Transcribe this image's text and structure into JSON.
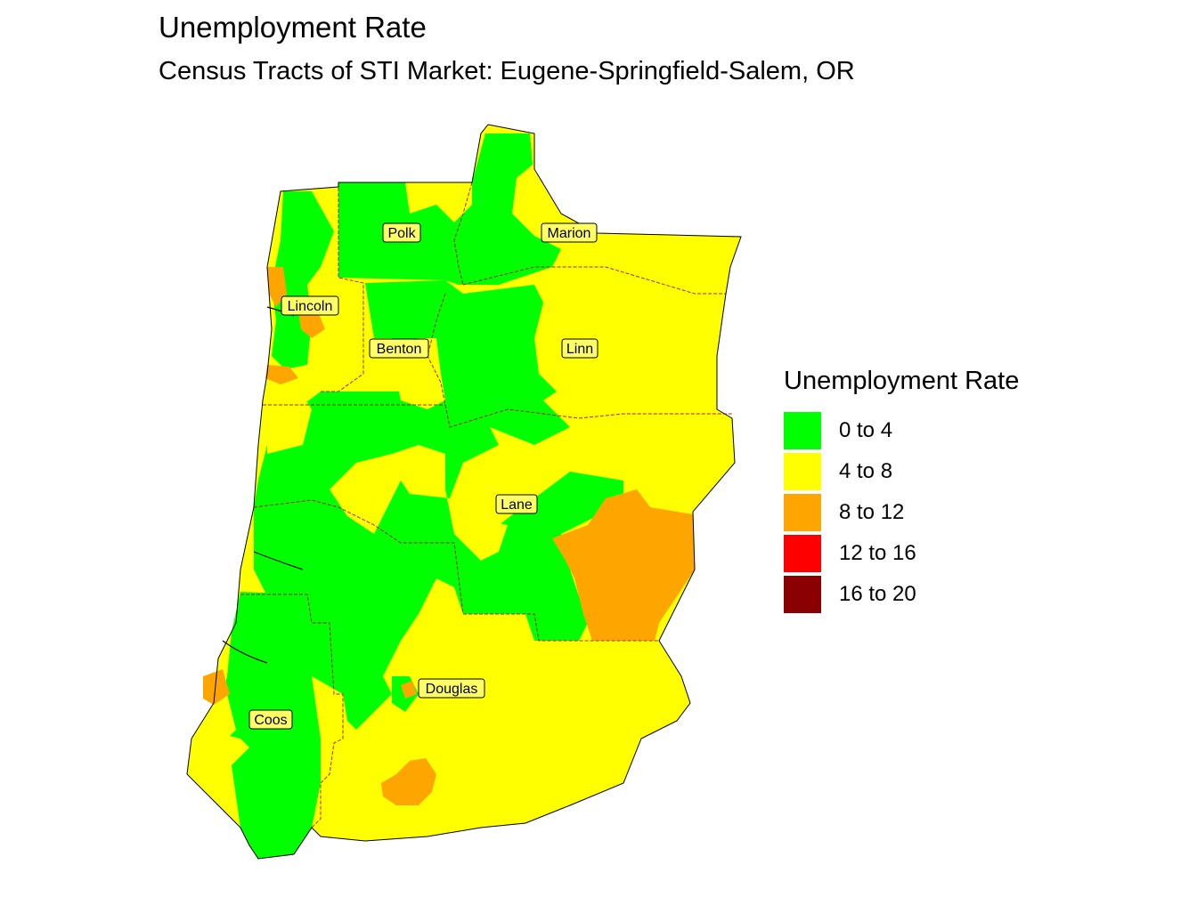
{
  "title": "Unemployment Rate",
  "subtitle": "Census Tracts of STI Market: Eugene-Springfield-Salem, OR",
  "legend": {
    "title": "Unemployment Rate",
    "items": [
      {
        "label": "0 to 4",
        "color": "#00ff00"
      },
      {
        "label": "4 to 8",
        "color": "#ffff00"
      },
      {
        "label": "8 to 12",
        "color": "#ffa500"
      },
      {
        "label": "12 to 16",
        "color": "#ff0000"
      },
      {
        "label": "16 to 20",
        "color": "#8b0000"
      }
    ]
  },
  "counties": [
    {
      "name": "Polk"
    },
    {
      "name": "Marion"
    },
    {
      "name": "Lincoln"
    },
    {
      "name": "Benton"
    },
    {
      "name": "Linn"
    },
    {
      "name": "Lane"
    },
    {
      "name": "Douglas"
    },
    {
      "name": "Coos"
    }
  ],
  "colors": {
    "border": "#b22222",
    "water": "#ffffff",
    "label_bg": "#ffff66"
  }
}
